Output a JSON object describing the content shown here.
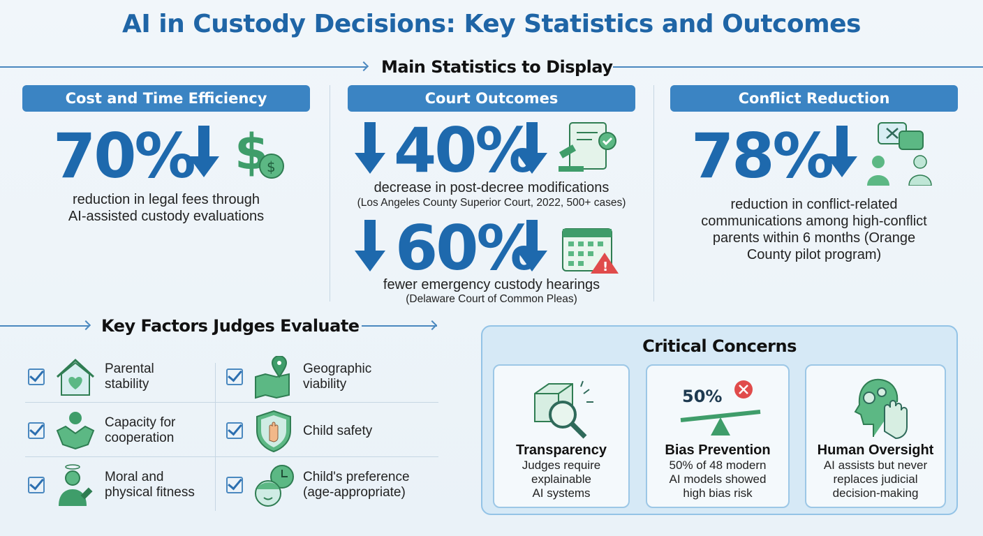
{
  "title": "AI in Custody Decisions: Key Statistics and Outcomes",
  "main_section": "Main Statistics to Display",
  "columns": [
    {
      "header": "Cost and Time Efficiency",
      "stat": "70%",
      "desc1": "reduction in legal fees through",
      "desc2": "AI-assisted custody evaluations",
      "icons": [
        "arrow-down-icon",
        "dollar-icon"
      ]
    },
    {
      "header": "Court Outcomes",
      "stats": [
        {
          "stat": "40%",
          "desc": "decrease in post-decree modifications",
          "source": "(Los Angeles County Superior Court, 2022, 500+ cases)",
          "icon": "gavel-document-icon"
        },
        {
          "stat": "60%",
          "desc": "fewer emergency custody hearings",
          "source": "(Delaware Court of Common Pleas)",
          "icon": "calendar-warning-icon"
        }
      ]
    },
    {
      "header": "Conflict Reduction",
      "stat": "78%",
      "lines": [
        "reduction in conflict-related",
        "communications among high-conflict",
        "parents within 6 months (Orange",
        "County pilot program)"
      ],
      "icon": "conflict-chat-icon"
    }
  ],
  "factors": {
    "title": "Key Factors Judges Evaluate",
    "items": [
      {
        "l1": "Parental",
        "l2": "stability",
        "icon": "house-heart-icon"
      },
      {
        "l1": "Geographic",
        "l2": "viability",
        "icon": "map-pin-icon"
      },
      {
        "l1": "Capacity for",
        "l2": "cooperation",
        "icon": "handshake-icon"
      },
      {
        "l1": "Child safety",
        "l2": "",
        "icon": "shield-hand-icon"
      },
      {
        "l1": "Moral and",
        "l2": "physical fitness",
        "icon": "person-fitness-icon"
      },
      {
        "l1": "Child's preference",
        "l2": "(age-appropriate)",
        "icon": "child-clock-icon"
      }
    ]
  },
  "concerns": {
    "title": "Critical Concerns",
    "cards": [
      {
        "title": "Transparency",
        "lines": [
          "Judges require",
          "explainable",
          "AI systems"
        ],
        "icon": "magnifier-cube-icon"
      },
      {
        "title": "Bias Prevention",
        "badge": "50%",
        "lines": [
          "50% of 48 modern",
          "AI models showed",
          "high bias risk"
        ],
        "icon": "scale-icon"
      },
      {
        "title": "Human Oversight",
        "lines": [
          "AI assists but never",
          "replaces judicial",
          "decision-making"
        ],
        "icon": "head-gear-hand-icon"
      }
    ]
  },
  "colors": {
    "primary": "#1e69ad",
    "pill": "#3b84c3",
    "icon_green": "#3f9d6a",
    "alert": "#e04b4b"
  }
}
